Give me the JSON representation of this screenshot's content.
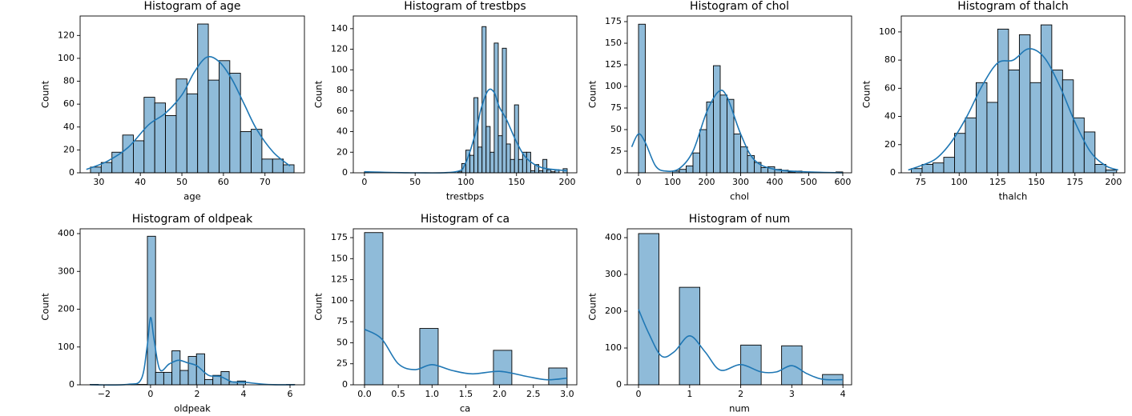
{
  "chart_data": [
    {
      "type": "histogram",
      "title": "Histogram of age",
      "x_label": "age",
      "y_label": "Count",
      "color": "#8fbbd9",
      "line_color": "#1f77b4",
      "bins": [
        28,
        30.58,
        33.16,
        35.74,
        38.32,
        40.89,
        43.47,
        46.05,
        48.63,
        51.21,
        53.79,
        56.37,
        58.95,
        61.53,
        64.11,
        66.68,
        69.26,
        71.84,
        74.42,
        77
      ],
      "values": [
        5,
        9,
        18,
        33,
        28,
        66,
        61,
        50,
        82,
        69,
        130,
        81,
        98,
        87,
        36,
        38,
        12,
        12,
        7
      ],
      "kde_x": [
        27,
        32,
        37,
        42,
        46,
        50,
        53,
        56,
        59,
        62,
        65,
        68,
        72,
        76
      ],
      "kde_y": [
        3,
        10,
        22,
        42,
        52,
        68,
        88,
        101,
        97,
        82,
        60,
        38,
        18,
        6
      ],
      "xlim": [
        25.5,
        79.5
      ],
      "ylim": [
        0,
        137
      ],
      "xticks": [
        30,
        40,
        50,
        60,
        70
      ],
      "yticks": [
        0,
        20,
        40,
        60,
        80,
        100,
        120
      ]
    },
    {
      "type": "histogram",
      "title": "Histogram of trestbps",
      "x_label": "trestbps",
      "y_label": "Count",
      "color": "#8fbbd9",
      "line_color": "#1f77b4",
      "bins": [
        0,
        4,
        8,
        12,
        16,
        20,
        24,
        28,
        32,
        36,
        40,
        44,
        48,
        52,
        56,
        60,
        64,
        68,
        72,
        76,
        80,
        84,
        88,
        92,
        96,
        100,
        104,
        108,
        112,
        116,
        120,
        124,
        128,
        132,
        136,
        140,
        144,
        148,
        152,
        156,
        160,
        164,
        168,
        172,
        176,
        180,
        184,
        188,
        192,
        196,
        200
      ],
      "values": [
        1,
        0,
        0,
        0,
        0,
        0,
        0,
        0,
        0,
        0,
        0,
        0,
        0,
        0,
        0,
        0,
        0,
        0,
        0,
        0,
        0,
        0,
        0,
        1,
        9,
        22,
        17,
        73,
        25,
        142,
        45,
        20,
        126,
        36,
        121,
        28,
        13,
        66,
        13,
        20,
        20,
        2,
        8,
        2,
        13,
        3,
        1,
        3,
        0,
        4
      ],
      "kde_x": [
        0,
        50,
        90,
        100,
        110,
        115,
        122,
        128,
        133,
        140,
        150,
        160,
        175,
        200
      ],
      "kde_y": [
        1,
        0,
        1,
        10,
        40,
        62,
        80,
        78,
        64,
        52,
        30,
        14,
        5,
        2
      ],
      "xlim": [
        -11,
        209.5
      ],
      "ylim": [
        0,
        152.3
      ],
      "xticks": [
        0,
        50,
        100,
        150,
        200
      ],
      "yticks": [
        0,
        20,
        40,
        60,
        80,
        100,
        120,
        140
      ]
    },
    {
      "type": "histogram",
      "title": "Histogram of chol",
      "x_label": "chol",
      "y_label": "Count",
      "color": "#8fbbd9",
      "line_color": "#1f77b4",
      "bins": [
        0,
        20,
        40,
        60,
        80,
        100,
        120,
        140,
        160,
        180,
        200,
        220,
        240,
        260,
        280,
        300,
        320,
        340,
        360,
        380,
        400,
        420,
        440,
        460,
        480,
        500,
        520,
        540,
        560,
        580,
        600
      ],
      "values": [
        172,
        0,
        0,
        0,
        0,
        2,
        4,
        8,
        23,
        50,
        82,
        124,
        90,
        85,
        45,
        30,
        20,
        12,
        6,
        7,
        4,
        3,
        1,
        2,
        0,
        0,
        0,
        0,
        0,
        1
      ],
      "kde_x": [
        -20,
        0,
        20,
        50,
        80,
        120,
        160,
        200,
        235,
        260,
        300,
        340,
        400,
        500,
        600
      ],
      "kde_y": [
        30,
        45,
        35,
        8,
        2,
        5,
        25,
        70,
        94,
        88,
        45,
        15,
        4,
        1,
        0
      ],
      "xlim": [
        -33,
        626
      ],
      "ylim": [
        0,
        181.5
      ],
      "xticks": [
        0,
        100,
        200,
        300,
        400,
        500,
        600
      ],
      "yticks": [
        0,
        25,
        50,
        75,
        100,
        125,
        150,
        175
      ]
    },
    {
      "type": "histogram",
      "title": "Histogram of thalch",
      "x_label": "thalch",
      "y_label": "Count",
      "color": "#8fbbd9",
      "line_color": "#1f77b4",
      "bins": [
        69,
        76,
        83,
        90,
        97,
        104,
        111,
        118,
        125,
        132,
        139,
        146,
        153,
        160,
        167,
        174,
        181,
        188,
        195,
        202
      ],
      "values": [
        3,
        6,
        7,
        11,
        28,
        39,
        64,
        50,
        102,
        73,
        98,
        64,
        105,
        73,
        66,
        39,
        29,
        6,
        2
      ],
      "kde_x": [
        67,
        75,
        85,
        95,
        105,
        115,
        125,
        135,
        145,
        155,
        165,
        175,
        185,
        195,
        203
      ],
      "kde_y": [
        2,
        5,
        10,
        22,
        40,
        62,
        78,
        80,
        88,
        82,
        62,
        36,
        15,
        5,
        2
      ],
      "xlim": [
        62.5,
        207.3
      ],
      "ylim": [
        0,
        111.3
      ],
      "xticks": [
        75,
        100,
        125,
        150,
        175,
        200
      ],
      "yticks": [
        0,
        20,
        40,
        60,
        80,
        100
      ]
    },
    {
      "type": "histogram",
      "title": "Histogram of oldpeak",
      "x_label": "oldpeak",
      "y_label": "Count",
      "color": "#8fbbd9",
      "line_color": "#1f77b4",
      "bins": [
        -2.6,
        -2.248,
        -1.896,
        -1.544,
        -1.192,
        -0.84,
        -0.488,
        -0.136,
        0.216,
        0.568,
        0.92,
        1.272,
        1.624,
        1.976,
        2.328,
        2.68,
        3.032,
        3.384,
        3.736,
        4.088,
        4.44,
        4.792,
        5.144,
        5.496,
        5.848,
        6.2
      ],
      "values": [
        1,
        0,
        0,
        0,
        0,
        1,
        1,
        393,
        33,
        33,
        90,
        38,
        75,
        82,
        14,
        25,
        35,
        8,
        10,
        0,
        0,
        0,
        0,
        0,
        1
      ],
      "kde_x": [
        -2.6,
        -1,
        -0.4,
        -0.15,
        0,
        0.15,
        0.4,
        0.8,
        1.2,
        1.6,
        2,
        2.5,
        3,
        3.5,
        4,
        5,
        6.2
      ],
      "kde_y": [
        0,
        1,
        15,
        100,
        178,
        120,
        40,
        55,
        65,
        58,
        50,
        25,
        22,
        8,
        7,
        1,
        0
      ],
      "xlim": [
        -3.03,
        6.62
      ],
      "ylim": [
        0,
        412.7
      ],
      "xticks": [
        {
          "value": -2,
          "label": "−2"
        },
        0,
        2,
        4,
        6
      ],
      "yticks": [
        0,
        100,
        200,
        300,
        400
      ]
    },
    {
      "type": "histogram",
      "title": "Histogram of ca",
      "x_label": "ca",
      "y_label": "Count",
      "color": "#8fbbd9",
      "line_color": "#1f77b4",
      "bins": [
        0,
        0.2727,
        0.5455,
        0.8182,
        1.0909,
        1.3636,
        1.6364,
        1.9091,
        2.1818,
        2.4545,
        2.7273,
        3
      ],
      "values": [
        181,
        0,
        0,
        67,
        0,
        0,
        0,
        41,
        0,
        0,
        20
      ],
      "kde_x": [
        0,
        0.25,
        0.5,
        0.75,
        1,
        1.3,
        1.6,
        2,
        2.4,
        2.7,
        3
      ],
      "kde_y": [
        66,
        55,
        25,
        18,
        24,
        17,
        13,
        16,
        10,
        6,
        8
      ],
      "xlim": [
        -0.166,
        3.144
      ],
      "ylim": [
        0,
        185.5
      ],
      "xticks": [
        {
          "value": 0,
          "label": "0.0"
        },
        0.5,
        {
          "value": 1,
          "label": "1.0"
        },
        1.5,
        {
          "value": 2,
          "label": "2.0"
        },
        2.5,
        {
          "value": 3,
          "label": "3.0"
        }
      ],
      "yticks": [
        0,
        25,
        50,
        75,
        100,
        125,
        150,
        175
      ]
    },
    {
      "type": "histogram",
      "title": "Histogram of num",
      "x_label": "num",
      "y_label": "Count",
      "color": "#8fbbd9",
      "line_color": "#1f77b4",
      "bins": [
        0,
        0.4,
        0.8,
        1.2,
        1.6,
        2,
        2.4,
        2.8,
        3.2,
        3.6,
        4
      ],
      "values": [
        411,
        0,
        265,
        0,
        0,
        108,
        0,
        106,
        0,
        28
      ],
      "kde_x": [
        0,
        0.2,
        0.45,
        0.7,
        1,
        1.3,
        1.6,
        2,
        2.4,
        2.7,
        3,
        3.3,
        3.6,
        4
      ],
      "kde_y": [
        205,
        140,
        78,
        90,
        133,
        90,
        40,
        55,
        35,
        35,
        52,
        30,
        15,
        14
      ],
      "xlim": [
        -0.22,
        4.17
      ],
      "ylim": [
        0,
        424
      ],
      "xticks": [
        0,
        1,
        2,
        3,
        4
      ],
      "yticks": [
        0,
        100,
        200,
        300,
        400
      ]
    }
  ]
}
